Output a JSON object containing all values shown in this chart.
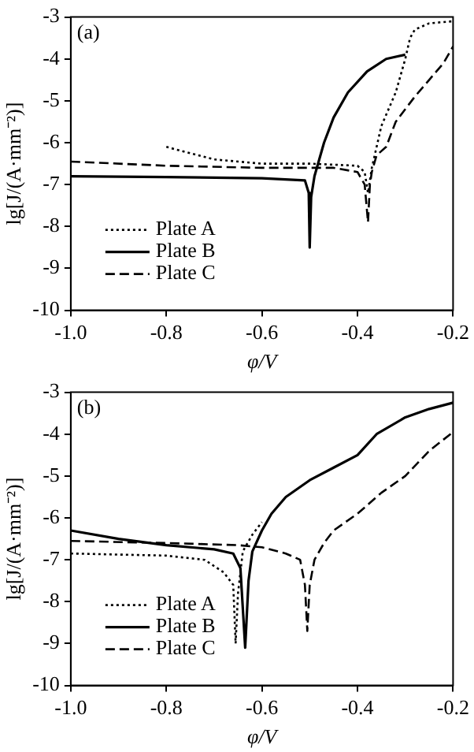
{
  "chart_data": [
    {
      "type": "line",
      "annotations": [
        "(a)"
      ],
      "xlabel": "φ/V",
      "ylabel": "lg[J/(A·mm⁻²)]",
      "xlim": [
        -1.0,
        -0.2
      ],
      "xticks": [
        {
          "value": -1.0,
          "label": "-1.0"
        },
        {
          "value": -0.8,
          "label": "-0.8"
        },
        {
          "value": -0.6,
          "label": "-0.6"
        },
        {
          "value": -0.4,
          "label": "-0.4"
        },
        {
          "value": -0.2,
          "label": "-0.2"
        }
      ],
      "ylim": [
        -10,
        -3
      ],
      "yticks": [
        -10,
        -9,
        -8,
        -7,
        -6,
        -5,
        -4,
        -3
      ],
      "grid": false,
      "legend": "bottom left",
      "marker": "none",
      "series": [
        {
          "name": "Plate A",
          "color": "#000000",
          "line_style": "dotted",
          "x": [
            -0.8,
            -0.7,
            -0.6,
            -0.5,
            -0.4,
            -0.385,
            -0.378,
            -0.37,
            -0.35,
            -0.32,
            -0.3,
            -0.29,
            -0.28,
            -0.25,
            -0.2
          ],
          "values": [
            -6.1,
            -6.4,
            -6.5,
            -6.5,
            -6.55,
            -6.7,
            -7.2,
            -6.6,
            -5.6,
            -4.8,
            -4.0,
            -3.5,
            -3.3,
            -3.15,
            -3.1
          ]
        },
        {
          "name": "Plate B",
          "color": "#000000",
          "line_style": "solid",
          "x": [
            -1.0,
            -0.8,
            -0.6,
            -0.51,
            -0.502,
            -0.5,
            -0.497,
            -0.49,
            -0.48,
            -0.47,
            -0.45,
            -0.42,
            -0.38,
            -0.34,
            -0.3
          ],
          "values": [
            -6.8,
            -6.82,
            -6.85,
            -6.9,
            -7.2,
            -8.5,
            -7.3,
            -6.8,
            -6.4,
            -6.0,
            -5.4,
            -4.8,
            -4.3,
            -4.0,
            -3.9
          ]
        },
        {
          "name": "Plate C",
          "color": "#000000",
          "line_style": "dashed",
          "x": [
            -1.0,
            -0.8,
            -0.6,
            -0.45,
            -0.4,
            -0.385,
            -0.378,
            -0.374,
            -0.37,
            -0.36,
            -0.34,
            -0.32,
            -0.3,
            -0.28,
            -0.25,
            -0.22,
            -0.2
          ],
          "values": [
            -6.45,
            -6.55,
            -6.6,
            -6.6,
            -6.7,
            -7.0,
            -7.9,
            -7.0,
            -6.7,
            -6.3,
            -6.1,
            -5.5,
            -5.2,
            -4.9,
            -4.5,
            -4.1,
            -3.7
          ]
        }
      ]
    },
    {
      "type": "line",
      "annotations": [
        "(b)"
      ],
      "xlabel": "φ/V",
      "ylabel": "lg[J/(A·mm⁻²)]",
      "xlim": [
        -1.0,
        -0.2
      ],
      "xticks": [
        {
          "value": -1.0,
          "label": "-1.0"
        },
        {
          "value": -0.8,
          "label": "-0.8"
        },
        {
          "value": -0.6,
          "label": "-0.6"
        },
        {
          "value": -0.4,
          "label": "-0.4"
        },
        {
          "value": -0.2,
          "label": "-0.2"
        }
      ],
      "ylim": [
        -10,
        -3
      ],
      "yticks": [
        -10,
        -9,
        -8,
        -7,
        -6,
        -5,
        -4,
        -3
      ],
      "grid": false,
      "legend": "bottom left",
      "marker": "none",
      "series": [
        {
          "name": "Plate A",
          "color": "#000000",
          "line_style": "dotted",
          "x": [
            -1.0,
            -0.8,
            -0.72,
            -0.68,
            -0.66,
            -0.655,
            -0.65,
            -0.64,
            -0.62,
            -0.6
          ],
          "values": [
            -6.85,
            -6.9,
            -7.0,
            -7.3,
            -7.6,
            -9.0,
            -7.8,
            -6.8,
            -6.4,
            -6.1
          ]
        },
        {
          "name": "Plate B",
          "color": "#000000",
          "line_style": "solid",
          "x": [
            -1.0,
            -0.9,
            -0.8,
            -0.7,
            -0.66,
            -0.645,
            -0.635,
            -0.628,
            -0.62,
            -0.6,
            -0.58,
            -0.55,
            -0.5,
            -0.45,
            -0.4,
            -0.36,
            -0.3,
            -0.25,
            -0.2
          ],
          "values": [
            -6.3,
            -6.5,
            -6.65,
            -6.75,
            -6.85,
            -7.2,
            -9.1,
            -7.5,
            -6.8,
            -6.3,
            -5.9,
            -5.5,
            -5.1,
            -4.8,
            -4.5,
            -4.0,
            -3.6,
            -3.4,
            -3.25
          ]
        },
        {
          "name": "Plate C",
          "color": "#000000",
          "line_style": "dashed",
          "x": [
            -1.0,
            -0.8,
            -0.65,
            -0.6,
            -0.55,
            -0.52,
            -0.51,
            -0.505,
            -0.5,
            -0.49,
            -0.47,
            -0.45,
            -0.4,
            -0.35,
            -0.3,
            -0.25,
            -0.2
          ],
          "values": [
            -6.55,
            -6.6,
            -6.65,
            -6.7,
            -6.85,
            -7.0,
            -7.6,
            -8.7,
            -7.6,
            -7.0,
            -6.6,
            -6.3,
            -5.9,
            -5.4,
            -5.0,
            -4.4,
            -3.95
          ]
        }
      ]
    }
  ]
}
